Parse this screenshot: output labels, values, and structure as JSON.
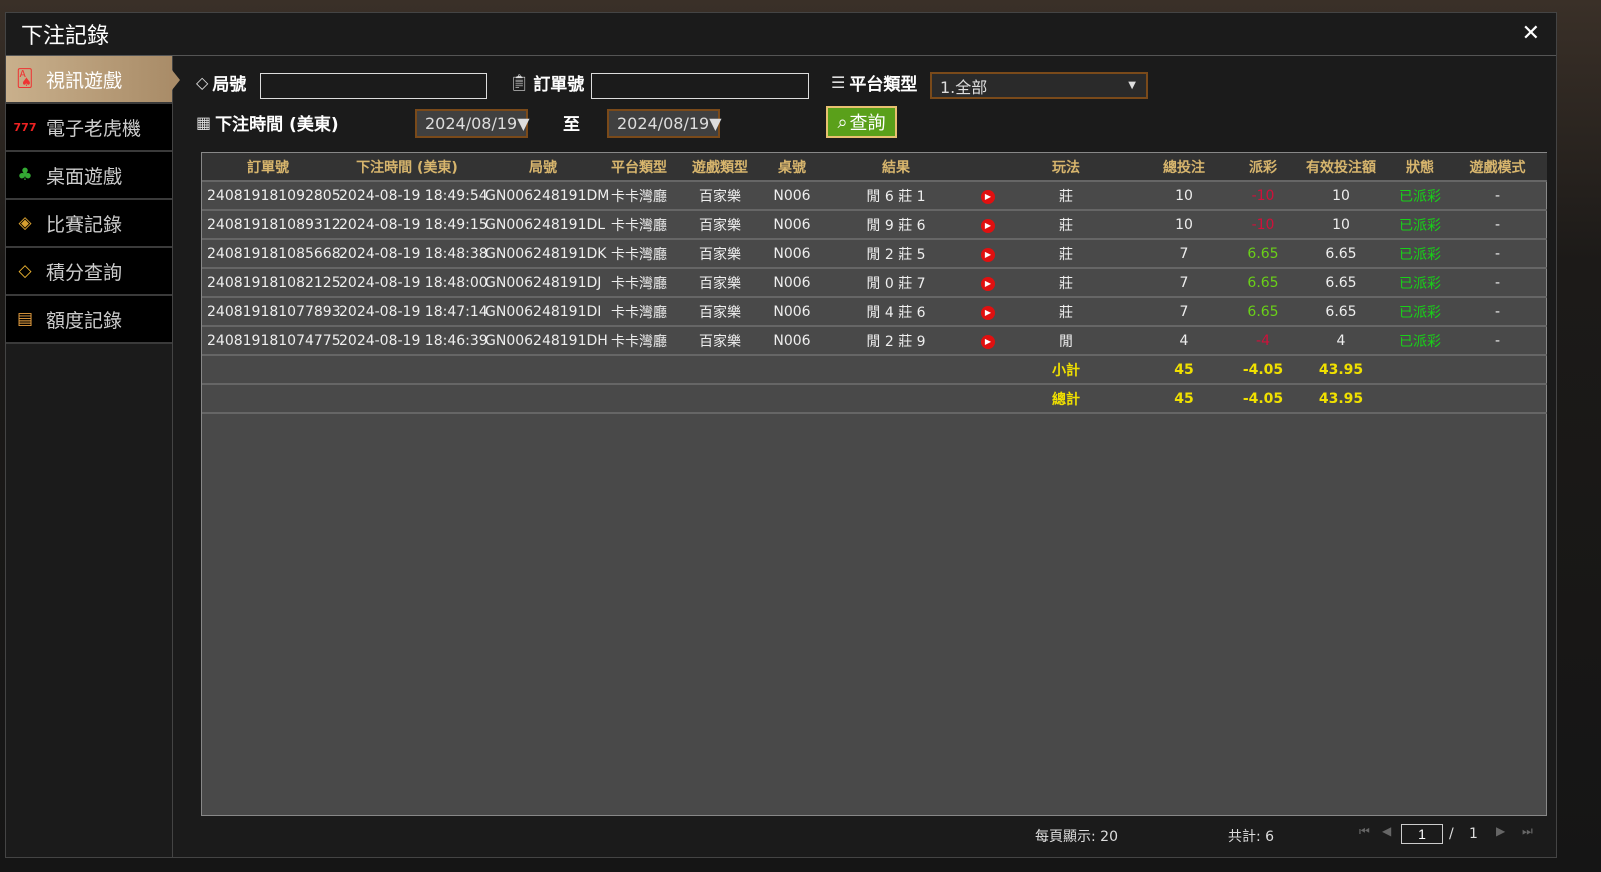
{
  "window": {
    "title": "下注記錄",
    "close": "✕"
  },
  "sidebar": {
    "items": [
      {
        "label": "視訊遊戲",
        "icon": "🂡"
      },
      {
        "label": "電子老虎機",
        "icon": "777"
      },
      {
        "label": "桌面遊戲",
        "icon": "♣"
      },
      {
        "label": "比賽記錄",
        "icon": "◈"
      },
      {
        "label": "積分查詢",
        "icon": "◇"
      },
      {
        "label": "額度記錄",
        "icon": "▤"
      }
    ]
  },
  "filters": {
    "round_label": "局號",
    "round_value": "",
    "order_label": "訂單號",
    "order_value": "",
    "platform_label": "平台類型",
    "platform_value": "1.全部",
    "time_label": "下注時間 (美東)",
    "date_from": "2024/08/19▼",
    "to_label": "至",
    "date_to": "2024/08/19▼",
    "search_label": "查詢"
  },
  "table": {
    "headers": [
      "訂單號",
      "下注時間 (美東)",
      "局號",
      "平台類型",
      "遊戲類型",
      "桌號",
      "結果",
      "",
      "玩法",
      "總投注",
      "派彩",
      "有效投注額",
      "狀態",
      "遊戲模式"
    ],
    "rows": [
      [
        "240819181092805",
        "2024-08-19 18:49:54",
        "GN006248191DM",
        "卡卡灣廳",
        "百家樂",
        "N006",
        "閒 6 莊 1",
        "莊",
        "10",
        "-10",
        "10",
        "已派彩",
        "-"
      ],
      [
        "240819181089312",
        "2024-08-19 18:49:15",
        "GN006248191DL",
        "卡卡灣廳",
        "百家樂",
        "N006",
        "閒 9 莊 6",
        "莊",
        "10",
        "-10",
        "10",
        "已派彩",
        "-"
      ],
      [
        "240819181085668",
        "2024-08-19 18:48:38",
        "GN006248191DK",
        "卡卡灣廳",
        "百家樂",
        "N006",
        "閒 2 莊 5",
        "莊",
        "7",
        "6.65",
        "6.65",
        "已派彩",
        "-"
      ],
      [
        "240819181082125",
        "2024-08-19 18:48:00",
        "GN006248191DJ",
        "卡卡灣廳",
        "百家樂",
        "N006",
        "閒 0 莊 7",
        "莊",
        "7",
        "6.65",
        "6.65",
        "已派彩",
        "-"
      ],
      [
        "240819181077893",
        "2024-08-19 18:47:14",
        "GN006248191DI",
        "卡卡灣廳",
        "百家樂",
        "N006",
        "閒 4 莊 6",
        "莊",
        "7",
        "6.65",
        "6.65",
        "已派彩",
        "-"
      ],
      [
        "240819181074775",
        "2024-08-19 18:46:39",
        "GN006248191DH",
        "卡卡灣廳",
        "百家樂",
        "N006",
        "閒 2 莊 9",
        "閒",
        "4",
        "-4",
        "4",
        "已派彩",
        "-"
      ]
    ],
    "subtotal": {
      "label": "小計",
      "total": "45",
      "payout": "-4.05",
      "valid": "43.95"
    },
    "grandtotal": {
      "label": "總計",
      "total": "45",
      "payout": "-4.05",
      "valid": "43.95"
    }
  },
  "footer": {
    "per_page": "每頁顯示: 20",
    "count": "共計: 6",
    "page": "1",
    "sep": "/",
    "pages": "1"
  },
  "colors": {
    "header": "#d7b56d",
    "negative": "#d0103a",
    "positive": "#6ad018",
    "status": "#18d018",
    "total": "#f0e000",
    "search": "#5aa01a"
  }
}
